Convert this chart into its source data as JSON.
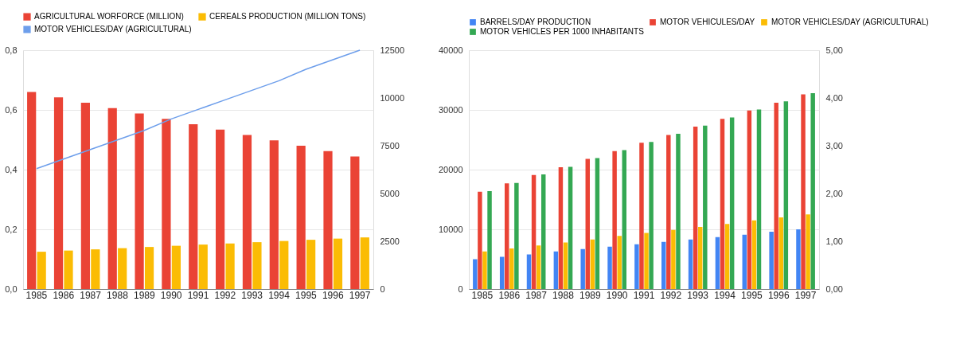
{
  "chart_data": [
    {
      "type": "bar",
      "categories": [
        "1985",
        "1986",
        "1987",
        "1988",
        "1989",
        "1990",
        "1991",
        "1992",
        "1993",
        "1994",
        "1995",
        "1996",
        "1997"
      ],
      "series": [
        {
          "name": "AGRICULTURAL WORFORCE (MILLION)",
          "color": "#ea4335",
          "values": [
            0.66,
            0.642,
            0.624,
            0.606,
            0.588,
            0.57,
            0.552,
            0.534,
            0.516,
            0.498,
            0.48,
            0.462,
            0.444
          ]
        },
        {
          "name": "CEREALS PRODUCTION (MILLION TONS)",
          "color": "#fbbc04",
          "values": [
            0.125,
            0.129,
            0.133,
            0.137,
            0.141,
            0.145,
            0.149,
            0.153,
            0.157,
            0.161,
            0.165,
            0.169,
            0.173
          ]
        },
        {
          "name": "MOTOR VEHICLES/DAY (AGRICULTURAL)",
          "type": "line",
          "axis": "y2",
          "color": "#6d9eeb",
          "values": [
            6300,
            6800,
            7300,
            7800,
            8300,
            8900,
            9400,
            9900,
            10400,
            10900,
            11500,
            12000,
            12500
          ]
        }
      ],
      "ylim": [
        0,
        0.8
      ],
      "yticks": [
        {
          "value": 0,
          "label": "0,0"
        },
        {
          "value": 0.2,
          "label": "0,2"
        },
        {
          "value": 0.4,
          "label": "0,4"
        },
        {
          "value": 0.6,
          "label": "0,6"
        },
        {
          "value": 0.8,
          "label": "0,8"
        }
      ],
      "y2lim": [
        0,
        12500
      ],
      "y2ticks": [
        0,
        2500,
        5000,
        7500,
        10000,
        12500
      ],
      "grid": "y",
      "legend": "top"
    },
    {
      "type": "bar",
      "categories": [
        "1985",
        "1986",
        "1987",
        "1988",
        "1989",
        "1990",
        "1991",
        "1992",
        "1993",
        "1994",
        "1995",
        "1996",
        "1997"
      ],
      "series": [
        {
          "name": "BARRELS/DAY PRODUCTION",
          "color": "#4285f4",
          "values": [
            5000,
            5400,
            5800,
            6300,
            6700,
            7100,
            7500,
            7900,
            8300,
            8700,
            9100,
            9600,
            10000
          ]
        },
        {
          "name": "MOTOR VEHICULES/DAY",
          "color": "#ea4335",
          "values": [
            16300,
            17700,
            19100,
            20400,
            21800,
            23100,
            24500,
            25800,
            27200,
            28500,
            29900,
            31200,
            32600
          ]
        },
        {
          "name": "MOTOR VEHICLES/DAY (AGRICULTURAL)",
          "color": "#fbbc04",
          "values": [
            6300,
            6800,
            7300,
            7800,
            8300,
            8900,
            9400,
            9900,
            10400,
            10900,
            11500,
            12000,
            12500
          ]
        },
        {
          "name": "MOTOR VEHICLES PER 1000 INHABITANTS",
          "axis": "y2",
          "color": "#34a853",
          "values": [
            2.05,
            2.22,
            2.4,
            2.56,
            2.74,
            2.91,
            3.08,
            3.25,
            3.42,
            3.59,
            3.76,
            3.93,
            4.1
          ]
        }
      ],
      "ylim": [
        0,
        40000
      ],
      "yticks": [
        0,
        10000,
        20000,
        30000,
        40000
      ],
      "y2lim": [
        0,
        5
      ],
      "y2ticks": [
        {
          "value": 0,
          "label": "0,00"
        },
        {
          "value": 1,
          "label": "1,00"
        },
        {
          "value": 2,
          "label": "2,00"
        },
        {
          "value": 3,
          "label": "3,00"
        },
        {
          "value": 4,
          "label": "4,00"
        },
        {
          "value": 5,
          "label": "5,00"
        }
      ],
      "grid": "y",
      "legend": "top"
    }
  ]
}
